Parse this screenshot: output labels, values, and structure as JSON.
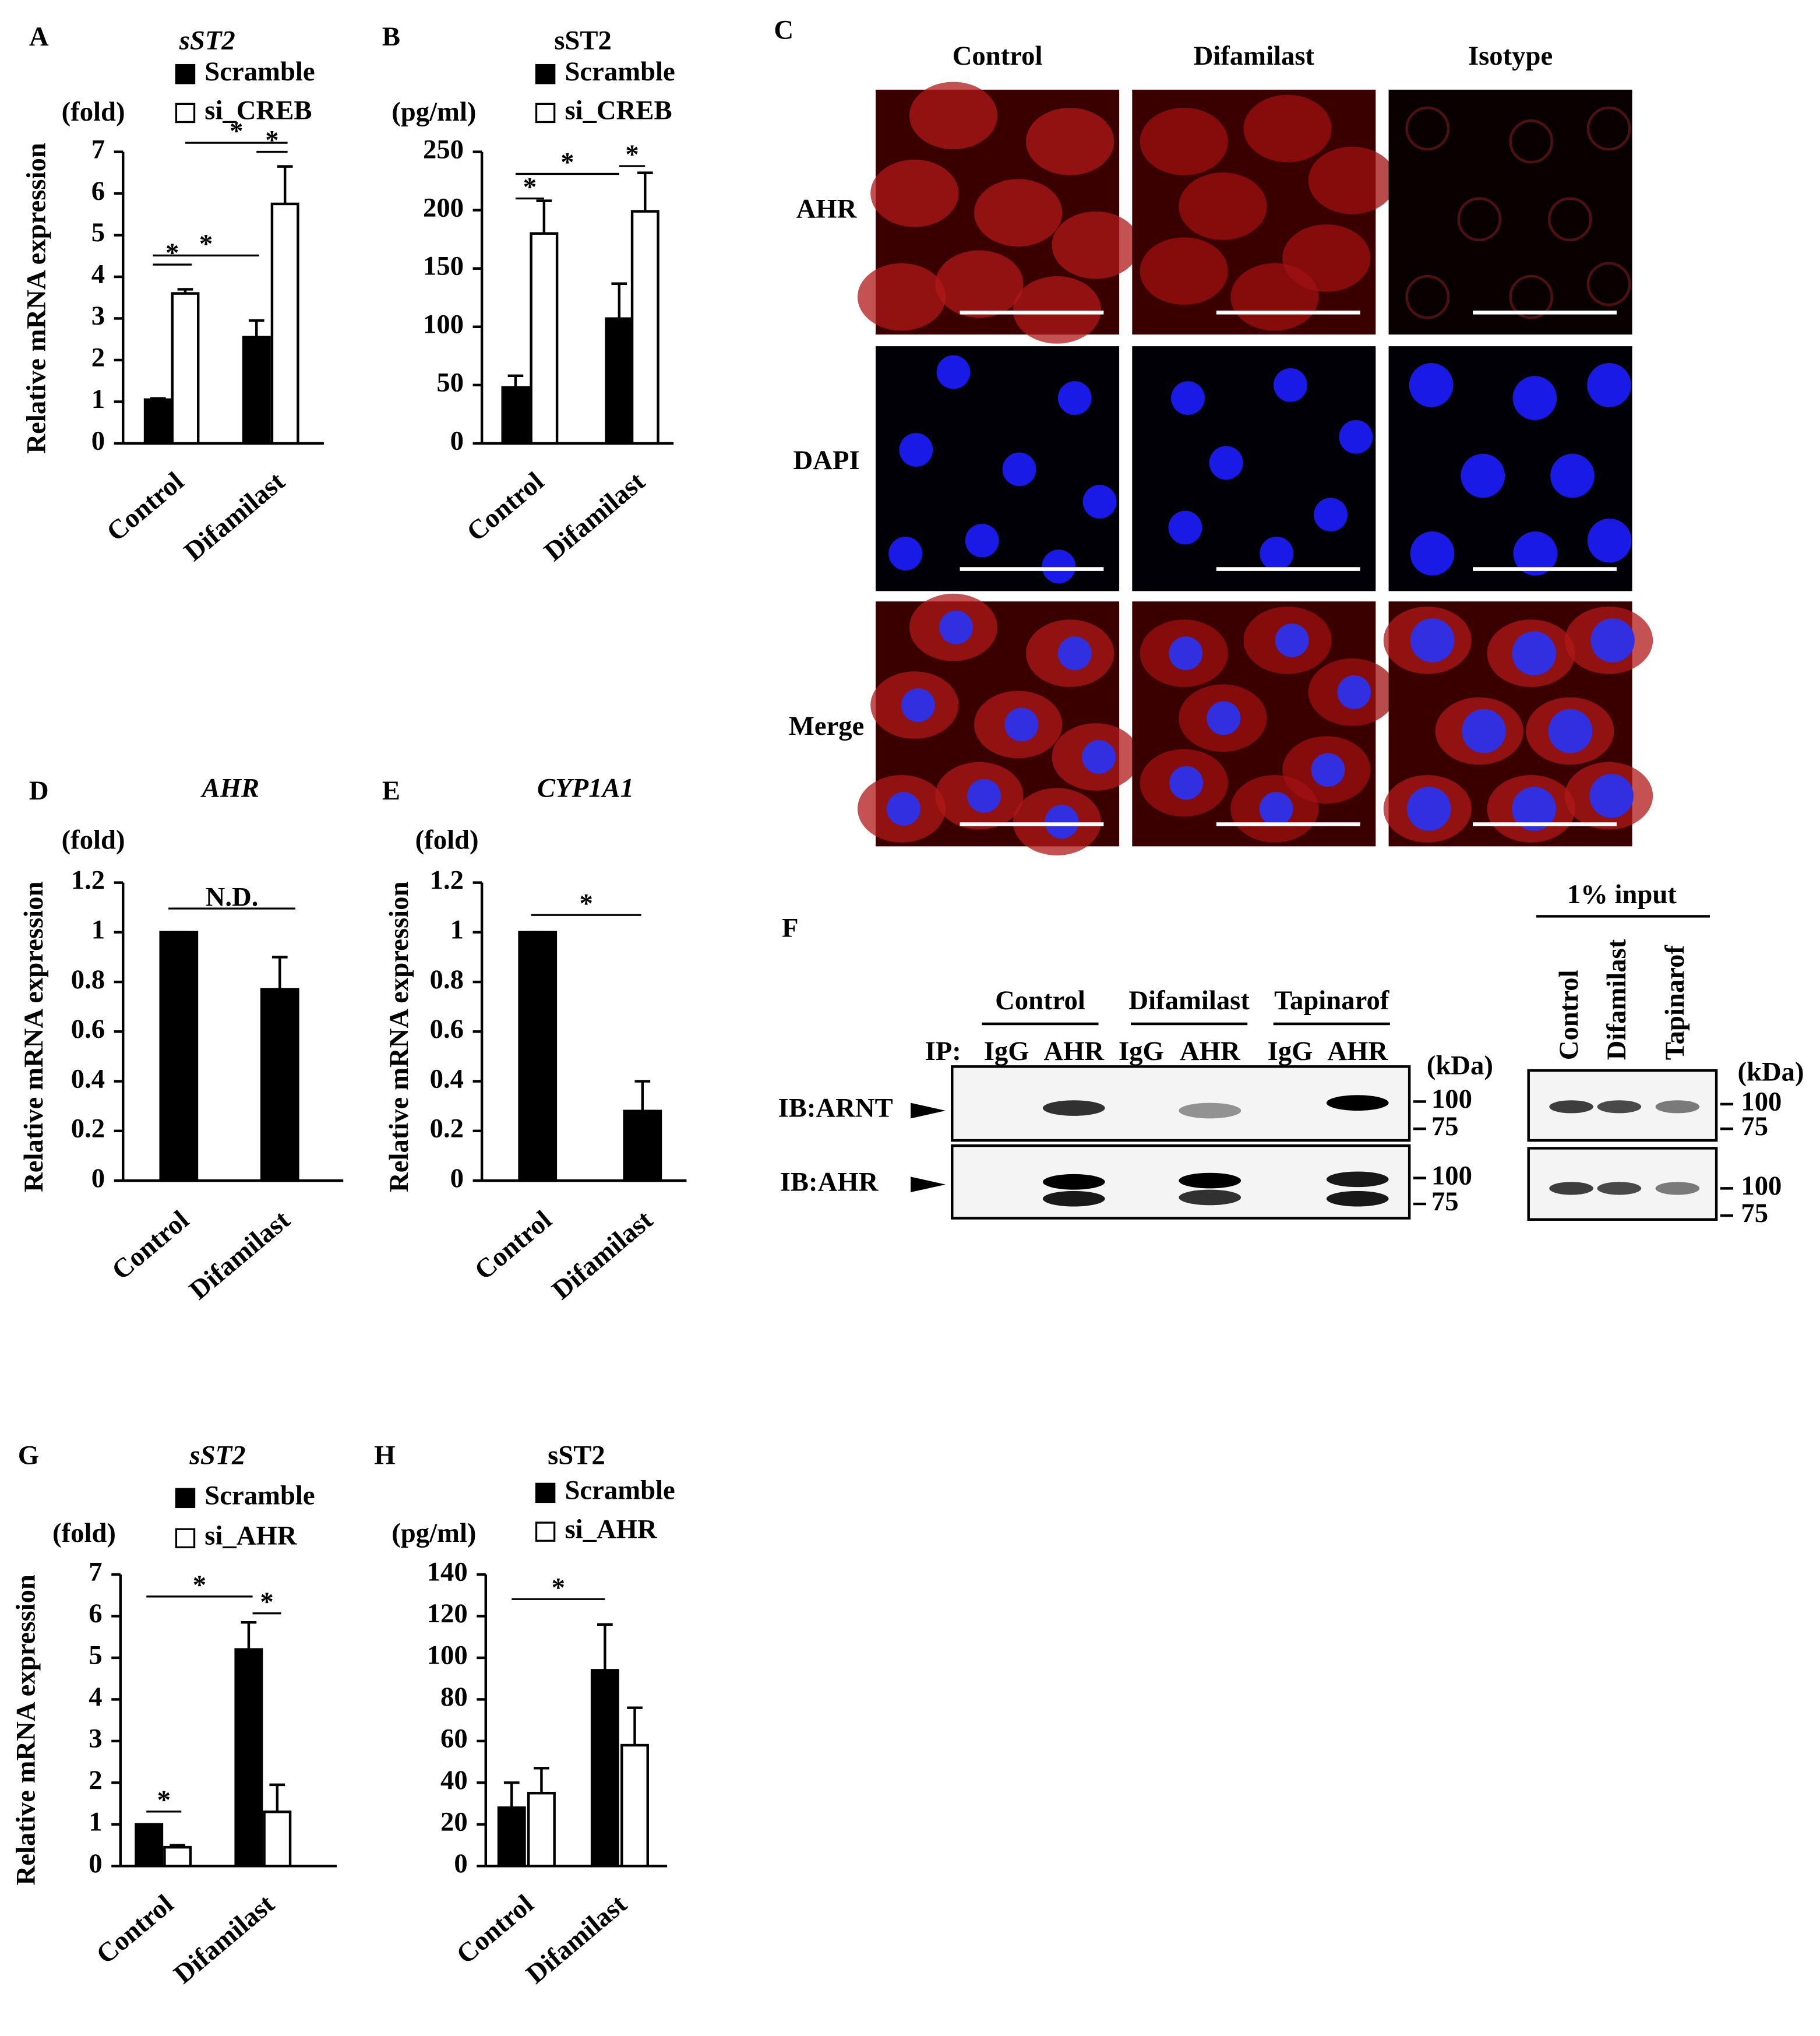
{
  "chart_data": [
    {
      "type": "bar",
      "panel": "A",
      "title": "sST2",
      "title_style": "italic",
      "unit": "(fold)",
      "ylabel": "Relative mRNA expression",
      "categories": [
        "Control",
        "Difamilast"
      ],
      "series": [
        {
          "name": "Scramble",
          "color": "#000000",
          "values": [
            1.05,
            2.55
          ],
          "errors": [
            0.03,
            0.4
          ]
        },
        {
          "name": "si_CREB",
          "color": "#ffffff",
          "values": [
            3.6,
            5.75
          ],
          "errors": [
            0.1,
            0.9
          ]
        }
      ],
      "ylim": [
        0,
        7
      ],
      "yticks": [
        0,
        1,
        2,
        3,
        4,
        5,
        6,
        7
      ],
      "significance": [
        "*",
        "*",
        "*",
        "*"
      ]
    },
    {
      "type": "bar",
      "panel": "B",
      "title": "sST2",
      "title_style": "normal",
      "unit": "(pg/ml)",
      "categories": [
        "Control",
        "Difamilast"
      ],
      "series": [
        {
          "name": "Scramble",
          "color": "#000000",
          "values": [
            48,
            107
          ],
          "errors": [
            10,
            30
          ]
        },
        {
          "name": "si_CREB",
          "color": "#ffffff",
          "values": [
            180,
            199
          ],
          "errors": [
            28,
            33
          ]
        }
      ],
      "ylim": [
        0,
        250
      ],
      "yticks": [
        0,
        50,
        100,
        150,
        200,
        250
      ],
      "significance": [
        "*",
        "*",
        "*"
      ]
    },
    {
      "type": "bar",
      "panel": "D",
      "title": "AHR",
      "title_style": "italic",
      "unit": "(fold)",
      "ylabel": "Relative mRNA expression",
      "categories": [
        "Control",
        "Difamilast"
      ],
      "values": [
        1.0,
        0.77
      ],
      "errors": [
        0,
        0.13
      ],
      "color": "#000000",
      "ylim": [
        0,
        1.2
      ],
      "yticks": [
        0,
        0.2,
        0.4,
        0.6,
        0.8,
        1,
        1.2
      ],
      "significance": [
        "N.D."
      ]
    },
    {
      "type": "bar",
      "panel": "E",
      "title": "CYP1A1",
      "title_style": "italic",
      "unit": "(fold)",
      "ylabel": "Relative mRNA expression",
      "categories": [
        "Control",
        "Difamilast"
      ],
      "values": [
        1.0,
        0.28
      ],
      "errors": [
        0,
        0.12
      ],
      "color": "#000000",
      "ylim": [
        0,
        1.2
      ],
      "yticks": [
        0,
        0.2,
        0.4,
        0.6,
        0.8,
        1,
        1.2
      ],
      "significance": [
        "*"
      ]
    },
    {
      "type": "bar",
      "panel": "G",
      "title": "sST2",
      "title_style": "italic",
      "unit": "(fold)",
      "ylabel": "Relative mRNA expression",
      "categories": [
        "Control",
        "Difamilast"
      ],
      "series": [
        {
          "name": "Scramble",
          "color": "#000000",
          "values": [
            1.0,
            5.2
          ],
          "errors": [
            0,
            0.65
          ]
        },
        {
          "name": "si_AHR",
          "color": "#ffffff",
          "values": [
            0.45,
            1.3
          ],
          "errors": [
            0.05,
            0.65
          ]
        }
      ],
      "ylim": [
        0,
        7
      ],
      "yticks": [
        0,
        1,
        2,
        3,
        4,
        5,
        6,
        7
      ],
      "significance": [
        "*",
        "*",
        "*"
      ]
    },
    {
      "type": "bar",
      "panel": "H",
      "title": "sST2",
      "title_style": "normal",
      "unit": "(pg/ml)",
      "categories": [
        "Control",
        "Difamilast"
      ],
      "series": [
        {
          "name": "Scramble",
          "color": "#000000",
          "values": [
            28,
            94
          ],
          "errors": [
            12,
            22
          ]
        },
        {
          "name": "si_AHR",
          "color": "#ffffff",
          "values": [
            35,
            58
          ],
          "errors": [
            12,
            18
          ]
        }
      ],
      "ylim": [
        0,
        140
      ],
      "yticks": [
        0,
        20,
        40,
        60,
        80,
        100,
        120,
        140
      ],
      "significance": [
        "*"
      ]
    }
  ],
  "microscopy": {
    "panel": "C",
    "columns": [
      "Control",
      "Difamilast",
      "Isotype"
    ],
    "rows": [
      "AHR",
      "DAPI",
      "Merge"
    ]
  },
  "blot": {
    "panel": "F",
    "ip_label": "IP:",
    "groups": [
      "Control",
      "Difamilast",
      "Tapinarof"
    ],
    "lanes": [
      "IgG",
      "AHR",
      "IgG",
      "AHR",
      "IgG",
      "AHR"
    ],
    "rows": [
      "IB:ARNT",
      "IB:AHR"
    ],
    "unit": "(kDa)",
    "markers": [
      [
        100,
        75
      ],
      [
        100,
        75
      ]
    ],
    "input_title": "1% input",
    "input_lanes": [
      "Control",
      "Difamilast",
      "Tapinarof"
    ],
    "input_unit": "(kDa)",
    "input_markers": [
      [
        100,
        75
      ],
      [
        100,
        75
      ]
    ]
  }
}
